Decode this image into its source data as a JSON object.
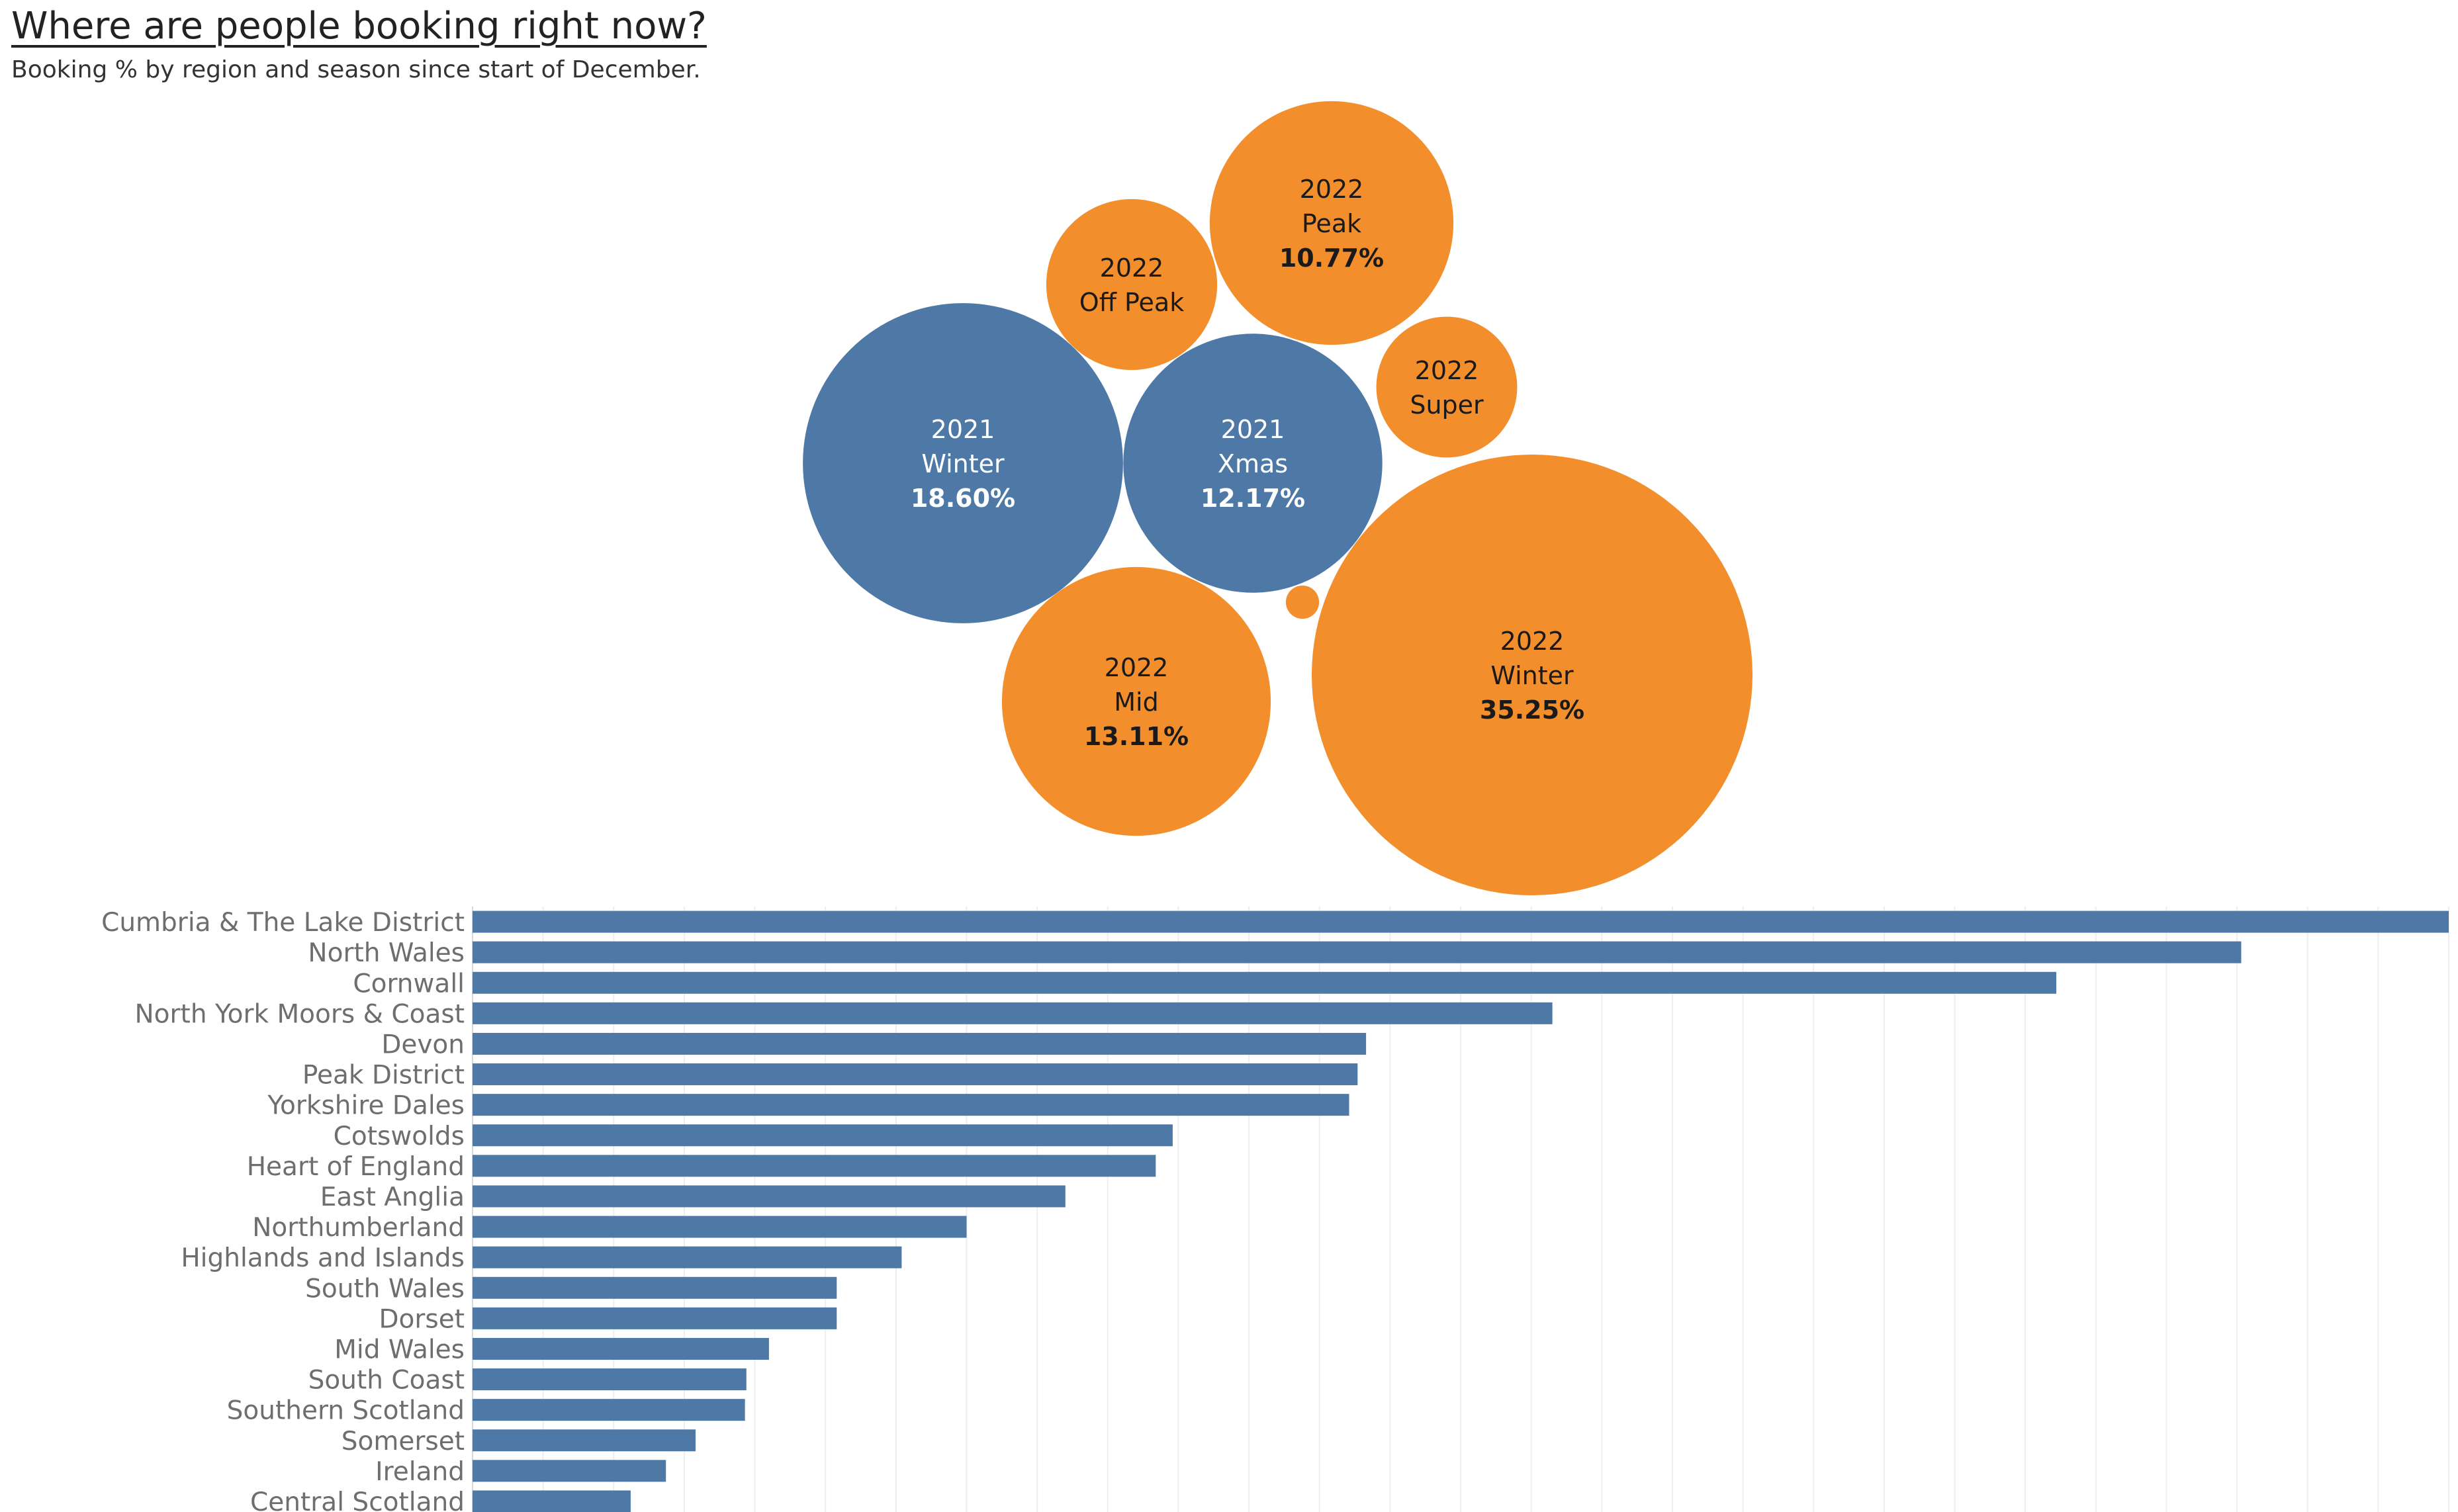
{
  "title": "Where are people booking right now?",
  "subtitle": "Booking % by region and season since start of December.",
  "colors": {
    "y2021": "#4e79a7",
    "y2022": "#f28e2b",
    "label_dark": "#1a1a1a",
    "label_light": "#ffffff",
    "region_label": "#6e6e6e",
    "gridline": "#eeeeee"
  },
  "chart_data": [
    {
      "type": "bubble",
      "bubbles": [
        {
          "year": "2022",
          "season": "Winter",
          "value_label": "35.25%",
          "value": 35.25,
          "color": "#f28e2b"
        },
        {
          "year": "2021",
          "season": "Winter",
          "value_label": "18.60%",
          "value": 18.6,
          "color": "#4e79a7"
        },
        {
          "year": "2022",
          "season": "Mid",
          "value_label": "13.11%",
          "value": 13.11,
          "color": "#f28e2b"
        },
        {
          "year": "2021",
          "season": "Xmas",
          "value_label": "12.17%",
          "value": 12.17,
          "color": "#4e79a7"
        },
        {
          "year": "2022",
          "season": "Peak",
          "value_label": "10.77%",
          "value": 10.77,
          "color": "#f28e2b"
        },
        {
          "year": "2022",
          "season": "Off Peak",
          "value_label": "",
          "value": 5.3,
          "color": "#f28e2b"
        },
        {
          "year": "2022",
          "season": "Super",
          "value_label": "",
          "value": 3.6,
          "color": "#f28e2b"
        },
        {
          "year": "",
          "season": "",
          "value_label": "",
          "value": 0.2,
          "color": "#f28e2b"
        }
      ]
    },
    {
      "type": "bar",
      "orientation": "horizontal",
      "grid": true,
      "categories": [
        "Cumbria & The Lake District",
        "North Wales",
        "Cornwall",
        "North York Moors & Coast",
        "Devon",
        "Peak District",
        "Yorkshire Dales",
        "Cotswolds",
        "Heart of England",
        "East Anglia",
        "Northumberland",
        "Highlands and Islands",
        "South Wales",
        "Dorset",
        "Mid Wales",
        "South Coast",
        "Southern Scotland",
        "Somerset",
        "Ireland",
        "Central Scotland"
      ],
      "values": [
        14.0,
        12.53,
        11.22,
        7.65,
        6.33,
        6.27,
        6.21,
        4.96,
        4.84,
        4.2,
        3.5,
        3.04,
        2.58,
        2.58,
        2.1,
        1.94,
        1.93,
        1.58,
        1.37,
        1.12
      ],
      "xlim": [
        0,
        14.0
      ],
      "grid_step": 0.5
    }
  ]
}
